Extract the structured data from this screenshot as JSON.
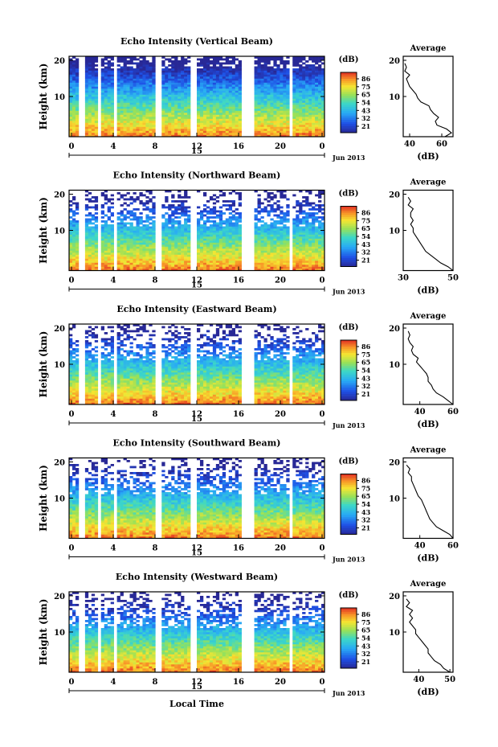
{
  "chart_data": [
    {
      "type": "heatmap",
      "title": "Echo Intensity (Vertical Beam)",
      "ylabel": "Height (km)",
      "yticks": [
        "20",
        "10"
      ],
      "xticks": [
        "0",
        "4",
        "8",
        "12",
        "16",
        "20",
        "0"
      ],
      "date_tick": "15",
      "date_label": "Jun 2013",
      "colorbar": {
        "label": "(dB)",
        "ticks": [
          "86",
          "75",
          "65",
          "54",
          "43",
          "32",
          "21"
        ]
      },
      "average": {
        "title": "Average",
        "xlabel": "(dB)",
        "xticks": [
          "40",
          "60"
        ],
        "yticks": [
          "20",
          "10"
        ],
        "xlim": [
          36,
          67
        ]
      },
      "profile": [
        [
          62,
          0
        ],
        [
          66,
          1
        ],
        [
          63,
          2
        ],
        [
          57,
          3
        ],
        [
          56,
          4
        ],
        [
          58,
          5
        ],
        [
          55,
          6
        ],
        [
          53,
          7
        ],
        [
          52,
          8
        ],
        [
          47,
          9
        ],
        [
          45,
          10
        ],
        [
          44,
          11
        ],
        [
          42,
          12
        ],
        [
          40,
          13
        ],
        [
          39,
          14
        ],
        [
          38,
          15
        ],
        [
          40,
          16
        ],
        [
          37,
          17
        ],
        [
          38,
          18
        ],
        [
          37,
          19
        ]
      ]
    },
    {
      "type": "heatmap",
      "title": "Echo Intensity (Northward Beam)",
      "ylabel": "Height (km)",
      "yticks": [
        "20",
        "10"
      ],
      "xticks": [
        "0",
        "4",
        "8",
        "12",
        "16",
        "20",
        "0"
      ],
      "date_tick": "15",
      "date_label": "Jun 2013",
      "colorbar": {
        "label": "(dB)",
        "ticks": [
          "86",
          "75",
          "65",
          "54",
          "43",
          "32",
          "21"
        ]
      },
      "average": {
        "title": "Average",
        "xlabel": "(dB)",
        "xticks": [
          "30",
          "50"
        ],
        "yticks": [
          "20",
          "10"
        ],
        "xlim": [
          30,
          50
        ]
      },
      "profile": [
        [
          50,
          0
        ],
        [
          48,
          1
        ],
        [
          45,
          2
        ],
        [
          43,
          3
        ],
        [
          41,
          4
        ],
        [
          39,
          5
        ],
        [
          38,
          6
        ],
        [
          37,
          7
        ],
        [
          36,
          8
        ],
        [
          35,
          9
        ],
        [
          34,
          10
        ],
        [
          34,
          11
        ],
        [
          33,
          12
        ],
        [
          34,
          13
        ],
        [
          33,
          14
        ],
        [
          33,
          15
        ],
        [
          34,
          16
        ],
        [
          32,
          17
        ],
        [
          33,
          18
        ],
        [
          32,
          19
        ]
      ]
    },
    {
      "type": "heatmap",
      "title": "Echo Intensity (Eastward Beam)",
      "ylabel": "Height (km)",
      "yticks": [
        "20",
        "10"
      ],
      "xticks": [
        "0",
        "4",
        "8",
        "12",
        "16",
        "20",
        "0"
      ],
      "date_tick": "15",
      "date_label": "Jun 2013",
      "colorbar": {
        "label": "(dB)",
        "ticks": [
          "86",
          "75",
          "65",
          "54",
          "43",
          "32",
          "21"
        ]
      },
      "average": {
        "title": "Average",
        "xlabel": "(dB)",
        "xticks": [
          "40",
          "60"
        ],
        "yticks": [
          "20",
          "10"
        ],
        "xlim": [
          30,
          60
        ]
      },
      "profile": [
        [
          60,
          0
        ],
        [
          57,
          1
        ],
        [
          54,
          2
        ],
        [
          50,
          3
        ],
        [
          48,
          4
        ],
        [
          47,
          5
        ],
        [
          45,
          6
        ],
        [
          45,
          7
        ],
        [
          44,
          8
        ],
        [
          42,
          9
        ],
        [
          40,
          10
        ],
        [
          38,
          11
        ],
        [
          39,
          12
        ],
        [
          36,
          13
        ],
        [
          35,
          14
        ],
        [
          36,
          15
        ],
        [
          34,
          16
        ],
        [
          33,
          17
        ],
        [
          34,
          18
        ],
        [
          33,
          19
        ]
      ]
    },
    {
      "type": "heatmap",
      "title": "Echo Intensity (Southward Beam)",
      "ylabel": "Height (km)",
      "yticks": [
        "20",
        "10"
      ],
      "xticks": [
        "0",
        "4",
        "8",
        "12",
        "16",
        "20",
        "0"
      ],
      "date_tick": "15",
      "date_label": "Jun 2013",
      "colorbar": {
        "label": "(dB)",
        "ticks": [
          "86",
          "75",
          "65",
          "54",
          "43",
          "32",
          "21"
        ]
      },
      "average": {
        "title": "Average",
        "xlabel": "(dB)",
        "xticks": [
          "40",
          "60"
        ],
        "yticks": [
          "20",
          "10"
        ],
        "xlim": [
          30,
          60
        ]
      },
      "profile": [
        [
          60,
          0
        ],
        [
          58,
          1
        ],
        [
          54,
          2
        ],
        [
          50,
          3
        ],
        [
          48,
          4
        ],
        [
          46,
          5
        ],
        [
          45,
          6
        ],
        [
          44,
          7
        ],
        [
          43,
          8
        ],
        [
          42,
          9
        ],
        [
          41,
          10
        ],
        [
          39,
          11
        ],
        [
          38,
          12
        ],
        [
          37,
          13
        ],
        [
          36,
          14
        ],
        [
          35,
          15
        ],
        [
          35,
          16
        ],
        [
          33,
          17
        ],
        [
          34,
          18
        ],
        [
          32,
          19
        ]
      ]
    },
    {
      "type": "heatmap",
      "title": "Echo Intensity (Westward Beam)",
      "ylabel": "Height (km)",
      "yticks": [
        "20",
        "10"
      ],
      "xticks": [
        "0",
        "4",
        "8",
        "12",
        "16",
        "20",
        "0"
      ],
      "date_tick": "15",
      "date_label": "Jun 2013",
      "colorbar": {
        "label": "(dB)",
        "ticks": [
          "86",
          "75",
          "65",
          "54",
          "43",
          "32",
          "21"
        ]
      },
      "average": {
        "title": "Average",
        "xlabel": "(dB)",
        "xticks": [
          "40",
          "50"
        ],
        "yticks": [
          "20",
          "10"
        ],
        "xlim": [
          35,
          51
        ]
      },
      "profile": [
        [
          50,
          0
        ],
        [
          48,
          1
        ],
        [
          47,
          2
        ],
        [
          45,
          3
        ],
        [
          44,
          4
        ],
        [
          43,
          5
        ],
        [
          43,
          6
        ],
        [
          42,
          7
        ],
        [
          41,
          8
        ],
        [
          40,
          9
        ],
        [
          39,
          10
        ],
        [
          39,
          11
        ],
        [
          38,
          12
        ],
        [
          37,
          13
        ],
        [
          38,
          14
        ],
        [
          37,
          15
        ],
        [
          38,
          16
        ],
        [
          36,
          17
        ],
        [
          37,
          18
        ],
        [
          36,
          19
        ]
      ]
    }
  ],
  "footer": {
    "xlabel": "Local Time"
  }
}
